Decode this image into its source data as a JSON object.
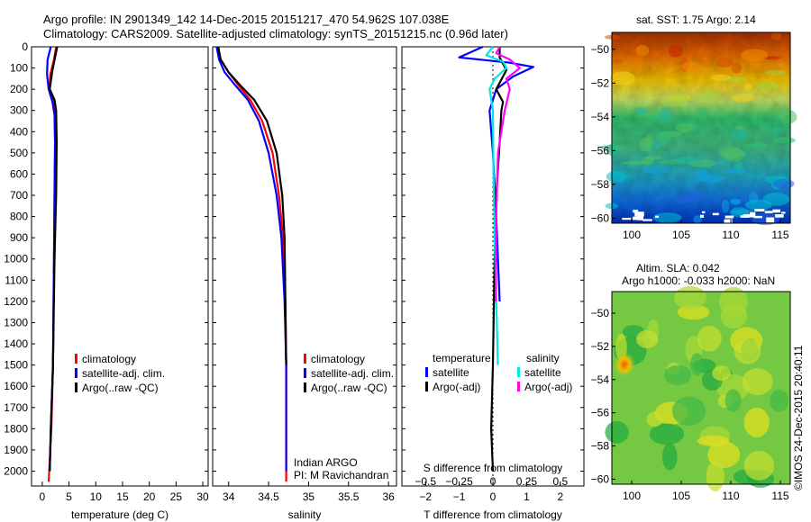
{
  "header": {
    "title_line1": "Argo profile: IN 2901349_142 14-Dec-2015 20151217_470 54.962S 107.038E",
    "title_line2": "Climatology: CARS2009. Satellite-adjusted climatology: synTS_20151215.nc (0.96d later)"
  },
  "colors": {
    "climatology": "#ff0000",
    "satellite": "#0000ff",
    "argo": "#000000",
    "sal_satellite": "#00e5e5",
    "sal_argo": "#ff00ff",
    "ref_line": "#000000"
  },
  "chart_data": [
    {
      "id": "temperature",
      "type": "line",
      "xlabel": "temperature (deg C)",
      "ylabel": "",
      "xlim": [
        -2,
        31
      ],
      "ylim": [
        2070,
        0
      ],
      "xticks": [
        0,
        5,
        10,
        15,
        20,
        25,
        30
      ],
      "yticks": [
        0,
        100,
        200,
        300,
        400,
        500,
        600,
        700,
        800,
        900,
        1000,
        1100,
        1200,
        1300,
        1400,
        1500,
        1600,
        1700,
        1800,
        1900,
        2000
      ],
      "legend": [
        "climatology",
        "satellite-adj. clim.",
        "Argo(..raw -QC)"
      ],
      "legend_position": "lower-center",
      "series": [
        {
          "name": "climatology",
          "color": "#ff0000",
          "x": [
            2.6,
            2.2,
            1.5,
            1.3,
            2.0,
            2.3,
            2.4,
            2.3,
            2.2,
            2.0,
            1.7,
            1.3,
            1.2
          ],
          "y": [
            0,
            60,
            130,
            200,
            250,
            300,
            450,
            700,
            1000,
            1500,
            1800,
            2000,
            2050
          ]
        },
        {
          "name": "satellite-adj. clim.",
          "color": "#0000ff",
          "x": [
            1.6,
            1.0,
            0.9,
            1.2,
            1.9,
            2.3,
            2.4,
            2.3,
            2.2,
            2.0,
            1.6,
            1.4
          ],
          "y": [
            0,
            60,
            130,
            200,
            260,
            320,
            450,
            700,
            1000,
            1500,
            1800,
            2000
          ]
        },
        {
          "name": "Argo(..raw -QC)",
          "color": "#000000",
          "x": [
            2.8,
            2.4,
            1.9,
            1.4,
            2.3,
            2.6,
            2.7,
            2.6,
            2.3,
            2.0,
            1.6,
            1.4
          ],
          "y": [
            0,
            50,
            110,
            200,
            250,
            300,
            450,
            700,
            1000,
            1500,
            1800,
            2000
          ]
        }
      ]
    },
    {
      "id": "salinity",
      "type": "line",
      "xlabel": "salinity",
      "ylabel": "",
      "xlim": [
        33.8,
        36.1
      ],
      "ylim": [
        2070,
        0
      ],
      "xticks": [
        34,
        34.5,
        35,
        35.5,
        36
      ],
      "legend": [
        "climatology",
        "satellite-adj. clim.",
        "Argo(..raw -QC)"
      ],
      "legend_position": "lower-center",
      "annotation": [
        "Indian ARGO",
        "PI: M Ravichandran"
      ],
      "series": [
        {
          "name": "climatology",
          "color": "#ff0000",
          "x": [
            33.85,
            33.9,
            34.0,
            34.12,
            34.27,
            34.42,
            34.55,
            34.63,
            34.68,
            34.71,
            34.72,
            34.72,
            34.72
          ],
          "y": [
            0,
            60,
            120,
            180,
            250,
            350,
            500,
            700,
            900,
            1200,
            1500,
            2000,
            2050
          ]
        },
        {
          "name": "satellite-adj. clim.",
          "color": "#0000ff",
          "x": [
            33.85,
            33.88,
            33.95,
            34.08,
            34.24,
            34.38,
            34.5,
            34.6,
            34.66,
            34.7,
            34.72,
            34.72
          ],
          "y": [
            0,
            60,
            120,
            180,
            250,
            350,
            500,
            700,
            900,
            1200,
            1500,
            2000
          ]
        },
        {
          "name": "Argo(..raw -QC)",
          "color": "#000000",
          "x": [
            33.87,
            33.9,
            34.0,
            34.14,
            34.32,
            34.48,
            34.6,
            34.67,
            34.7,
            34.71,
            34.72
          ],
          "y": [
            0,
            60,
            120,
            180,
            250,
            350,
            500,
            700,
            900,
            1200,
            1500
          ]
        }
      ]
    },
    {
      "id": "difference",
      "type": "line",
      "xlabel": "T difference from climatology",
      "top_label": "S difference from climatology",
      "xlim": [
        -2.7,
        2.7
      ],
      "ylim": [
        2070,
        0
      ],
      "xticks": [
        -2,
        -1,
        0,
        1,
        2
      ],
      "xtick_labels": [
        "−2",
        "−1",
        "0",
        "1",
        "2"
      ],
      "s_xticks": [
        -0.5,
        -0.25,
        0,
        0.25,
        0.5
      ],
      "s_xtick_labels": [
        "−0.5",
        "−0.25",
        "0",
        "0.25",
        "0.5"
      ],
      "legend_t_header": "temperature",
      "legend_s_header": "salinity",
      "legend_t": [
        "satellite",
        "Argo(-adj)"
      ],
      "legend_s": [
        "satellite",
        "Argo(-adj)"
      ],
      "series": [
        {
          "name": "T satellite",
          "color": "#0000ff",
          "x": [
            -0.3,
            -1.0,
            0.5,
            1.2,
            0.6,
            0.1,
            -0.1,
            0.0,
            0.1,
            0.2
          ],
          "y": [
            0,
            50,
            75,
            95,
            140,
            200,
            300,
            500,
            800,
            1200
          ]
        },
        {
          "name": "T Argo(-adj)",
          "color": "#000000",
          "x": [
            0.2,
            0.2,
            0.4,
            0.1,
            0.3,
            0.25,
            0.2,
            0.1,
            0.05,
            0.0,
            -0.05,
            0.0
          ],
          "y": [
            0,
            50,
            110,
            200,
            260,
            300,
            450,
            700,
            1000,
            1500,
            1800,
            2000
          ]
        },
        {
          "name": "S satellite",
          "color": "#00e5e5",
          "x": [
            0.0,
            -0.2,
            0.3,
            0.4,
            0.05,
            -0.1,
            0.0,
            0.02,
            0.05,
            0.1,
            0.15
          ],
          "y": [
            0,
            40,
            70,
            100,
            150,
            200,
            300,
            600,
            900,
            1200,
            1500
          ]
        },
        {
          "name": "S Argo(-adj)",
          "color": "#ff00ff",
          "x": [
            0.2,
            0.1,
            0.5,
            0.8,
            0.4,
            0.5,
            0.35,
            0.15,
            0.1,
            0.08
          ],
          "y": [
            0,
            30,
            60,
            100,
            150,
            200,
            300,
            500,
            800,
            1200
          ]
        }
      ]
    },
    {
      "id": "sst_map",
      "type": "heatmap",
      "title": "sat. SST: 1.75 Argo: 2.14",
      "xlim": [
        98,
        116
      ],
      "ylim": [
        -60.3,
        -49
      ],
      "xticks": [
        100,
        105,
        110,
        115
      ],
      "yticks": [
        -50,
        -52,
        -54,
        -56,
        -58,
        -60
      ],
      "ytick_labels": [
        "−50",
        "−52",
        "−54",
        "−56",
        "−58",
        "−60"
      ]
    },
    {
      "id": "sla_map",
      "type": "heatmap",
      "title_line1": "Altim. SLA: 0.042",
      "title_line2": "Argo h1000: -0.033 h2000: NaN",
      "xlim": [
        98,
        116
      ],
      "ylim": [
        -60.3,
        -48.7
      ],
      "xticks": [
        100,
        105,
        110,
        115
      ],
      "yticks": [
        -50,
        -52,
        -54,
        -56,
        -58,
        -60
      ],
      "ytick_labels": [
        "−50",
        "−52",
        "−54",
        "−56",
        "−58",
        "−60"
      ]
    }
  ],
  "footer": {
    "credit": "©IMOS 24-Dec-2015 20:40:11"
  }
}
